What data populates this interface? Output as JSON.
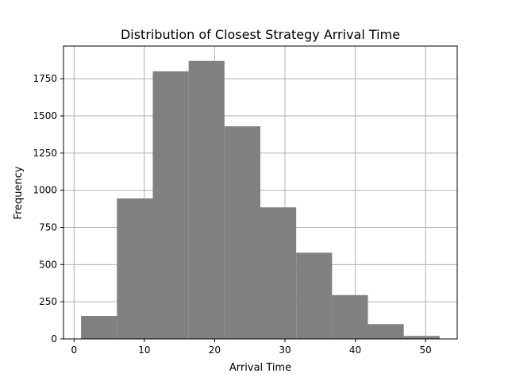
{
  "chart_data": {
    "type": "bar",
    "title": "Distribution of Closest Strategy Arrival Time",
    "xlabel": "Arrival Time",
    "ylabel": "Frequency",
    "xlim": [
      -1.5,
      54.5
    ],
    "ylim": [
      0,
      1970
    ],
    "grid": true,
    "bar_color": "#808080",
    "bins": [
      {
        "x0": 1.0,
        "x1": 6.1,
        "count": 155
      },
      {
        "x0": 6.1,
        "x1": 11.2,
        "count": 945
      },
      {
        "x0": 11.2,
        "x1": 16.3,
        "count": 1800
      },
      {
        "x0": 16.3,
        "x1": 21.4,
        "count": 1870
      },
      {
        "x0": 21.4,
        "x1": 26.5,
        "count": 1430
      },
      {
        "x0": 26.5,
        "x1": 31.6,
        "count": 885
      },
      {
        "x0": 31.6,
        "x1": 36.7,
        "count": 580
      },
      {
        "x0": 36.7,
        "x1": 41.8,
        "count": 295
      },
      {
        "x0": 41.8,
        "x1": 46.9,
        "count": 100
      },
      {
        "x0": 46.9,
        "x1": 52.0,
        "count": 20
      }
    ],
    "xticks": [
      0,
      10,
      20,
      30,
      40,
      50
    ],
    "xtick_labels": [
      "0",
      "10",
      "20",
      "30",
      "40",
      "50"
    ],
    "yticks": [
      0,
      250,
      500,
      750,
      1000,
      1250,
      1500,
      1750
    ],
    "ytick_labels": [
      "0",
      "250",
      "500",
      "750",
      "1000",
      "1250",
      "1500",
      "1750"
    ]
  }
}
